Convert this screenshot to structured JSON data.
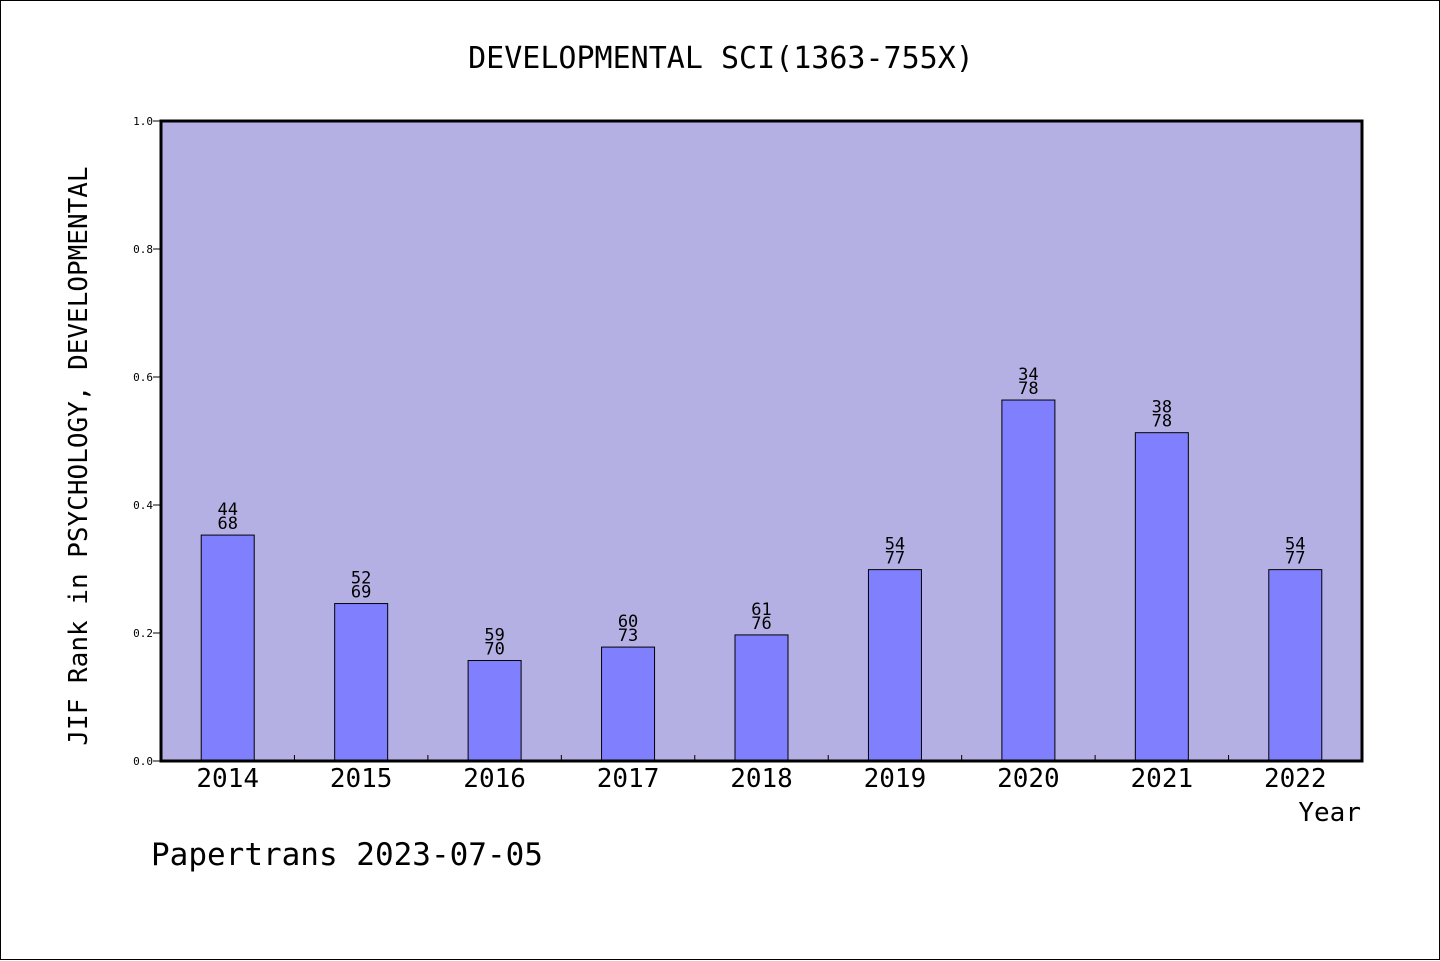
{
  "chart_data": {
    "type": "bar",
    "title": "DEVELOPMENTAL SCI(1363-755X)",
    "xlabel": "Year",
    "ylabel": "JIF Rank in PSYCHOLOGY, DEVELOPMENTAL",
    "ylim": [
      0,
      1.0
    ],
    "yticks": [
      "0.0",
      "0.2",
      "0.4",
      "0.6",
      "0.8",
      "1.0"
    ],
    "categories": [
      "2014",
      "2015",
      "2016",
      "2017",
      "2018",
      "2019",
      "2020",
      "2021",
      "2022"
    ],
    "values": [
      0.353,
      0.246,
      0.157,
      0.178,
      0.197,
      0.299,
      0.564,
      0.513,
      0.299
    ],
    "rank_labels": [
      {
        "rank": "44",
        "total": "68"
      },
      {
        "rank": "52",
        "total": "69"
      },
      {
        "rank": "59",
        "total": "70"
      },
      {
        "rank": "60",
        "total": "73"
      },
      {
        "rank": "61",
        "total": "76"
      },
      {
        "rank": "54",
        "total": "77"
      },
      {
        "rank": "34",
        "total": "78"
      },
      {
        "rank": "38",
        "total": "78"
      },
      {
        "rank": "54",
        "total": "77"
      }
    ],
    "grid": false,
    "legend": "none",
    "colors": {
      "plot_background": "#b5b0e3",
      "bar_fill": "#8080ff",
      "bar_stroke": "#000000",
      "axis": "#000000"
    }
  },
  "footer": {
    "source": "Papertrans 2023-07-05"
  }
}
